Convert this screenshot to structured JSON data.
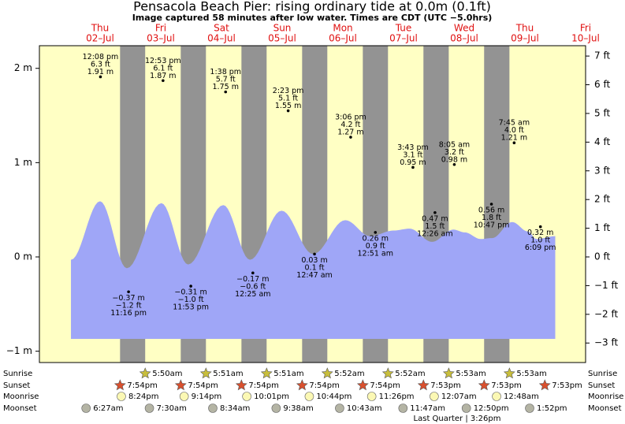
{
  "chart_data": {
    "type": "tide",
    "title": "Pensacola Beach Pier: rising  ordinary tide at 0.0m (0.1ft)",
    "subtitle": "Image captured 58 minutes after low water. Times are CDT (UTC −5.0hrs)",
    "xlim": [
      -0.5,
      8.5
    ],
    "xticks": [
      {
        "value": 0.5,
        "label": "Thu"
      },
      {
        "value": 1.5,
        "label": "Fri"
      },
      {
        "value": 2.5,
        "label": "Sat"
      },
      {
        "value": 3.5,
        "label": "Sun"
      },
      {
        "value": 4.5,
        "label": "Mon"
      },
      {
        "value": 5.5,
        "label": "Tue"
      },
      {
        "value": 6.5,
        "label": "Wed"
      },
      {
        "value": 7.5,
        "label": "Thu"
      },
      {
        "value": 8.5,
        "label": "Fri"
      }
    ],
    "xtick_dates": [
      "02–Jul",
      "03–Jul",
      "04–Jul",
      "05–Jul",
      "06–Jul",
      "07–Jul",
      "08–Jul",
      "09–Jul",
      "10–Jul"
    ],
    "ylim": [
      -1.12,
      2.24
    ],
    "yticks": [
      {
        "value": 2,
        "label": "2 m"
      },
      {
        "value": 1,
        "label": "1 m"
      },
      {
        "value": 0,
        "label": "0 m"
      },
      {
        "value": -1,
        "label": "−1 m"
      }
    ],
    "y2lim": [
      -3.68,
      7.36
    ],
    "y2ticks": [
      {
        "value": 7,
        "label": "7 ft"
      },
      {
        "value": 6,
        "label": "6 ft"
      },
      {
        "value": 5,
        "label": "5 ft"
      },
      {
        "value": 4,
        "label": "4 ft"
      },
      {
        "value": 3,
        "label": "3 ft"
      },
      {
        "value": 2,
        "label": "2 ft"
      },
      {
        "value": 1,
        "label": "1 ft"
      },
      {
        "value": 0,
        "label": "0 ft"
      },
      {
        "value": -1,
        "label": "−1 ft"
      },
      {
        "value": -2,
        "label": "−2 ft"
      },
      {
        "value": -3,
        "label": "−3 ft"
      }
    ],
    "series": [
      {
        "color": "#9fa6f7",
        "x": [
          0.02,
          0.5,
          0.94,
          1.51,
          1.95,
          2.53,
          2.97,
          3.49,
          4.01,
          4.54,
          4.95,
          5.34,
          5.6,
          5.97,
          6.32,
          6.51,
          6.77,
          6.96,
          7.29,
          7.55,
          7.69,
          8.0
        ],
        "values": [
          -0.03,
          0.59,
          -0.12,
          0.57,
          -0.08,
          0.55,
          -0.03,
          0.49,
          0.03,
          0.39,
          0.22,
          0.28,
          0.3,
          0.16,
          0.29,
          0.26,
          0.19,
          0.2,
          0.37,
          0.27,
          0.19,
          0.22
        ]
      }
    ],
    "extremes": {
      "x": [
        0.506,
        0.969,
        1.537,
        1.995,
        2.568,
        3.017,
        3.599,
        4.033,
        4.629,
        5.036,
        5.655,
        6.018,
        6.337,
        6.949,
        7.323,
        7.756
      ],
      "values": [
        1.91,
        -0.37,
        1.87,
        -0.31,
        1.75,
        -0.17,
        1.55,
        0.03,
        1.27,
        0.26,
        0.95,
        0.47,
        0.98,
        0.56,
        1.21,
        0.32
      ],
      "value_labels": [
        "1.91 m",
        "−0.37 m",
        "1.87 m",
        "−0.31 m",
        "1.75 m",
        "−0.17 m",
        "1.55 m",
        "0.03 m",
        "1.27 m",
        "0.26 m",
        "0.95 m",
        "0.47 m",
        "0.98 m",
        "0.56 m",
        "1.21 m",
        "0.32 m"
      ],
      "ft_labels": [
        "6.3 ft",
        "−1.2 ft",
        "6.1 ft",
        "−1.0 ft",
        "5.7 ft",
        "−0.6 ft",
        "5.1 ft",
        "0.1 ft",
        "4.2 ft",
        "0.9 ft",
        "3.1 ft",
        "1.5 ft",
        "3.2 ft",
        "1.8 ft",
        "4.0 ft",
        "1.0 ft"
      ],
      "time_labels": [
        "12:08 pm",
        "11:16 pm",
        "12:53 pm",
        "11:53 pm",
        "1:38 pm",
        "12:25 am",
        "2:23 pm",
        "12:47 am",
        "3:06 pm",
        "12:51 am",
        "3:43 pm",
        "12:26 am",
        "8:05 am",
        "10:47 pm",
        "7:45 am",
        "6:09 pm"
      ]
    },
    "sunrise": {
      "label": "Sunrise",
      "color": "#c8be3c",
      "x": [
        1.243,
        2.244,
        3.244,
        4.244,
        5.244,
        6.245,
        7.245
      ],
      "times": [
        "5:50am",
        "5:51am",
        "5:51am",
        "5:52am",
        "5:52am",
        "5:53am",
        "5:53am"
      ]
    },
    "sunset": {
      "label": "Sunset",
      "color": "#d9502e",
      "x": [
        0.829,
        1.829,
        2.829,
        3.829,
        4.829,
        5.828,
        6.828,
        7.828
      ],
      "times": [
        "7:54pm",
        "7:54pm",
        "7:54pm",
        "7:54pm",
        "7:54pm",
        "7:53pm",
        "7:53pm",
        "7:53pm"
      ]
    },
    "moonrise": {
      "label": "Moonrise",
      "color": "#fbf8b4",
      "x": [
        0.85,
        1.885,
        2.917,
        3.947,
        4.976,
        6.005,
        7.033
      ],
      "times": [
        "8:24pm",
        "9:14pm",
        "10:01pm",
        "10:44pm",
        "11:26pm",
        "12:07am",
        "12:48am"
      ]
    },
    "moonset": {
      "label": "Moonset",
      "color": "#b4b4a4",
      "x": [
        0.269,
        1.3125,
        2.357,
        3.401,
        4.447,
        5.491,
        6.535,
        7.578
      ],
      "times": [
        "6:27am",
        "7:30am",
        "8:34am",
        "9:38am",
        "10:43am",
        "11:47am",
        "12:50pm",
        "1:52pm"
      ]
    },
    "moon_phase": "Last Quarter | 3:26pm",
    "night_color": "#939393",
    "day_color": "#ffffc4",
    "date_color": "#e01010"
  }
}
